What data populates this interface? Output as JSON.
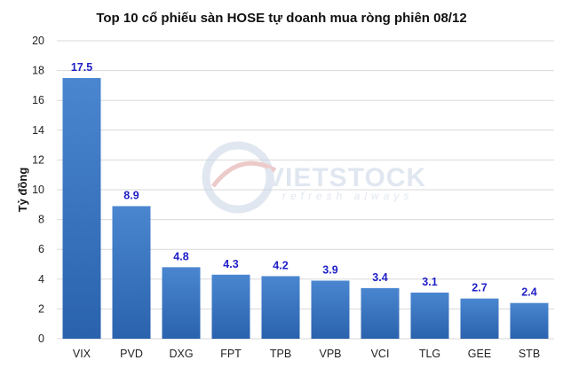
{
  "chart_data": {
    "type": "bar",
    "title": "Top 10 cổ phiếu sàn HOSE tự doanh mua ròng phiên 08/12",
    "xlabel": "",
    "ylabel": "Tỷ đồng",
    "categories": [
      "VIX",
      "PVD",
      "DXG",
      "FPT",
      "TPB",
      "VPB",
      "VCI",
      "TLG",
      "GEE",
      "STB"
    ],
    "values": [
      17.5,
      8.9,
      4.8,
      4.3,
      4.2,
      3.9,
      3.4,
      3.1,
      2.7,
      2.4
    ],
    "data_labels": [
      "17.5",
      "8.9",
      "4.8",
      "4.3",
      "4.2",
      "3.9",
      "3.4",
      "3.1",
      "2.7",
      "2.4"
    ],
    "ylim": [
      0,
      20
    ],
    "yticks": [
      "0",
      "2",
      "4",
      "6",
      "8",
      "10",
      "12",
      "14",
      "16",
      "18",
      "20"
    ],
    "grid": true,
    "legend": "none"
  },
  "watermark": {
    "brand": "VIETSTOCK",
    "tagline": "refresh always"
  },
  "colors": {
    "bar_top": "#4a86d0",
    "bar_bottom": "#2a62ad",
    "data_label": "#1f1fc8",
    "grid": "#d9d9d9",
    "watermark": "#c9d4e4"
  }
}
